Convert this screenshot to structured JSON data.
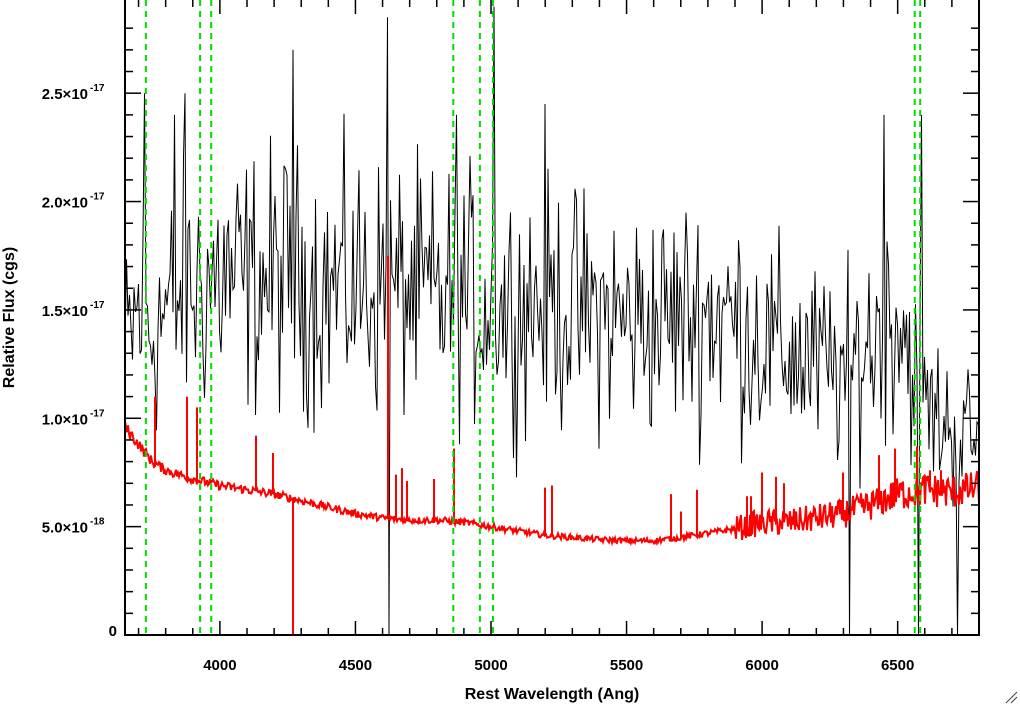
{
  "chart_data": {
    "type": "line",
    "title": "",
    "xlabel": "Rest Wavelength (Ang)",
    "ylabel": "Relative Flux (cgs)",
    "xlim": [
      3650,
      6800
    ],
    "ylim": [
      0,
      2.93e-17
    ],
    "x_ticks": [
      {
        "value": 4000,
        "label": "4000"
      },
      {
        "value": 4500,
        "label": "4500"
      },
      {
        "value": 5000,
        "label": "5000"
      },
      {
        "value": 5500,
        "label": "5500"
      },
      {
        "value": 6000,
        "label": "6000"
      },
      {
        "value": 6500,
        "label": "6500"
      }
    ],
    "y_ticks": [
      {
        "value": 0,
        "label": "0"
      },
      {
        "value": 5e-18,
        "label": "5.0×10",
        "exp": "-18"
      },
      {
        "value": 1e-17,
        "label": "1.0×10",
        "exp": "-17"
      },
      {
        "value": 1.5e-17,
        "label": "1.5×10",
        "exp": "-17"
      },
      {
        "value": 2e-17,
        "label": "2.0×10",
        "exp": "-17"
      },
      {
        "value": 2.5e-17,
        "label": "2.5×10",
        "exp": "-17"
      }
    ],
    "grid": false,
    "legend": "none",
    "series": [
      {
        "color": "#000000",
        "description": "observed spectrum (noisy)",
        "x": [
          3650,
          3700,
          3750,
          3800,
          3850,
          3900,
          3950,
          4000,
          4100,
          4200,
          4300,
          4400,
          4500,
          4600,
          4700,
          4800,
          4900,
          5000,
          5100,
          5200,
          5300,
          5400,
          5500,
          5600,
          5700,
          5800,
          5900,
          6000,
          6100,
          6200,
          6300,
          6400,
          6500,
          6600,
          6700,
          6800
        ],
        "center": [
          1.3e-17,
          1.5e-17,
          1.4e-17,
          1.5e-17,
          1.55e-17,
          1.6e-17,
          1.62e-17,
          1.65e-17,
          1.63e-17,
          1.65e-17,
          1.63e-17,
          1.6e-17,
          1.62e-17,
          1.6e-17,
          1.58e-17,
          1.55e-17,
          1.58e-17,
          1.5e-17,
          1.52e-17,
          1.55e-17,
          1.5e-17,
          1.48e-17,
          1.45e-17,
          1.45e-17,
          1.47e-17,
          1.5e-17,
          1.45e-17,
          1.35e-17,
          1.3e-17,
          1.25e-17,
          1.2e-17,
          1.35e-17,
          1.5e-17,
          1.05e-17,
          9.5e-18,
          9e-18
        ],
        "spikes": [
          {
            "x": 3720,
            "y": 2.5e-17
          },
          {
            "x": 3830,
            "y": 2.4e-17
          },
          {
            "x": 3870,
            "y": 2.5e-17
          },
          {
            "x": 4270,
            "y": 2.7e-17
          },
          {
            "x": 4620,
            "y": 2.85e-17
          },
          {
            "x": 4870,
            "y": 2.4e-17
          },
          {
            "x": 5010,
            "y": 2.9e-17
          },
          {
            "x": 5200,
            "y": 2.45e-17
          },
          {
            "x": 6450,
            "y": 2.4e-17
          },
          {
            "x": 6590,
            "y": 2.4e-17
          },
          {
            "x": 4625,
            "y": 0
          },
          {
            "x": 6320,
            "y": 0
          },
          {
            "x": 6580,
            "y": 0
          },
          {
            "x": 6720,
            "y": 0
          }
        ]
      },
      {
        "color": "#ff0000",
        "description": "model / sky continuum",
        "x": [
          3650,
          3700,
          3750,
          3800,
          3900,
          4000,
          4100,
          4200,
          4300,
          4400,
          4500,
          4600,
          4700,
          4800,
          4900,
          5000,
          5100,
          5200,
          5300,
          5400,
          5500,
          5600,
          5700,
          5800,
          5900,
          6000,
          6100,
          6200,
          6300,
          6400,
          6500,
          6600,
          6700,
          6800
        ],
        "y": [
          9.6e-18,
          8.8e-18,
          8e-18,
          7.6e-18,
          7.2e-18,
          6.9e-18,
          6.7e-18,
          6.5e-18,
          6.2e-18,
          5.9e-18,
          5.6e-18,
          5.4e-18,
          5.3e-18,
          5.3e-18,
          5.2e-18,
          5e-18,
          4.8e-18,
          4.6e-18,
          4.5e-18,
          4.4e-18,
          4.35e-18,
          4.35e-18,
          4.5e-18,
          4.7e-18,
          4.9e-18,
          5.2e-18,
          5.2e-18,
          5.4e-18,
          5.6e-18,
          6e-18,
          6.5e-18,
          6.7e-18,
          6.6e-18,
          6.8e-18
        ],
        "spikes": [
          {
            "x": 3760,
            "y": 1.1e-17
          },
          {
            "x": 3880,
            "y": 1.1e-17
          },
          {
            "x": 3915,
            "y": 1.05e-17
          },
          {
            "x": 4135,
            "y": 9.2e-18
          },
          {
            "x": 4195,
            "y": 8.4e-18
          },
          {
            "x": 4270,
            "y": 0
          },
          {
            "x": 4620,
            "y": 1.75e-17
          },
          {
            "x": 4650,
            "y": 7.4e-18
          },
          {
            "x": 4670,
            "y": 7.7e-18
          },
          {
            "x": 4690,
            "y": 7.1e-18
          },
          {
            "x": 4790,
            "y": 7.2e-18
          },
          {
            "x": 4865,
            "y": 8.6e-18
          },
          {
            "x": 5200,
            "y": 6.8e-18
          },
          {
            "x": 5225,
            "y": 6.9e-18
          },
          {
            "x": 5665,
            "y": 6.5e-18
          },
          {
            "x": 5700,
            "y": 5.7e-18
          },
          {
            "x": 5760,
            "y": 6.7e-18
          },
          {
            "x": 5945,
            "y": 6.4e-18
          },
          {
            "x": 5960,
            "y": 6.4e-18
          },
          {
            "x": 6000,
            "y": 7.5e-18
          },
          {
            "x": 6050,
            "y": 7.3e-18
          },
          {
            "x": 6080,
            "y": 7e-18
          },
          {
            "x": 6300,
            "y": 7.5e-18
          },
          {
            "x": 6430,
            "y": 8.3e-18
          },
          {
            "x": 6490,
            "y": 8.6e-18
          },
          {
            "x": 6570,
            "y": 8.7e-18
          },
          {
            "x": 6620,
            "y": 7.6e-18
          },
          {
            "x": 6660,
            "y": 7.6e-18
          }
        ]
      }
    ],
    "vlines": {
      "color": "#00dd00",
      "style": "dashed",
      "x": [
        3727,
        3927,
        3968,
        4861,
        4959,
        5007,
        6563,
        6583
      ]
    }
  }
}
